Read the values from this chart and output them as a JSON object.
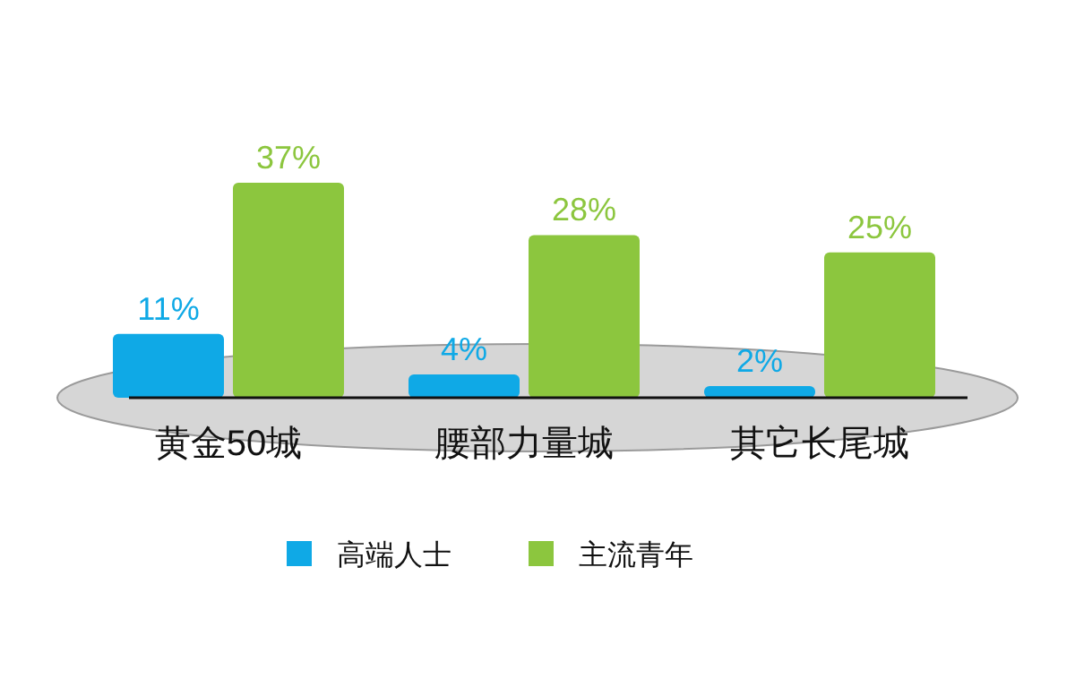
{
  "chart_data": {
    "type": "bar",
    "categories": [
      "黄金50城",
      "腰部力量城",
      "其它长尾城"
    ],
    "series": [
      {
        "name": "高端人士",
        "color": "#0fa9e6",
        "values": [
          11,
          4,
          2
        ],
        "value_labels": [
          "11%",
          "4%",
          "2%"
        ]
      },
      {
        "name": "主流青年",
        "color": "#8cc63e",
        "values": [
          37,
          28,
          25
        ],
        "value_labels": [
          "37%",
          "28%",
          "25%"
        ]
      }
    ],
    "legend": "bottom"
  }
}
